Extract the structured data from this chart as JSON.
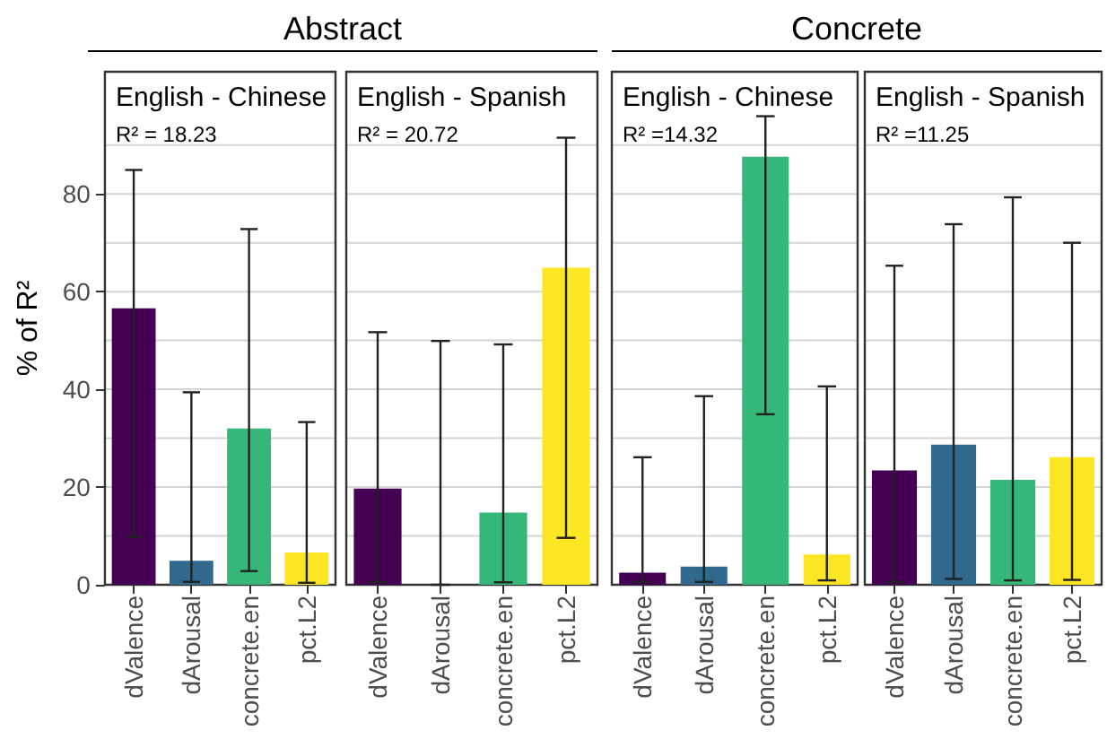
{
  "chart_data": [
    {
      "type": "bar",
      "subtitle": "Abstract",
      "title": "English - Chinese",
      "annotations": [
        "R² = 18.23"
      ],
      "ylabel": "% of R²",
      "categories": [
        "dValence",
        "dArousal",
        "concrete.en",
        "pct.L2"
      ],
      "values": [
        56.6,
        4.9,
        32.0,
        6.6
      ],
      "colors": [
        "#440154",
        "#31688e",
        "#35b779",
        "#fde725"
      ],
      "errors": [
        [
          9.8,
          84.9
        ],
        [
          0.6,
          39.4
        ],
        [
          2.8,
          72.8
        ],
        [
          0.4,
          33.3
        ]
      ],
      "ylim": [
        0,
        105
      ],
      "yticks": [
        0,
        {
          "value": 10,
          "label": null
        },
        20,
        {
          "value": 30,
          "label": null
        },
        40,
        {
          "value": 50,
          "label": null
        },
        60,
        {
          "value": 70,
          "label": null
        },
        80,
        {
          "value": 90,
          "label": null
        }
      ],
      "grid": "y"
    },
    {
      "type": "bar",
      "title": "English - Spanish",
      "annotations": [
        "R² = 20.72"
      ],
      "categories": [
        "dValence",
        "dArousal",
        "concrete.en",
        "pct.L2"
      ],
      "values": [
        19.7,
        0,
        14.8,
        64.9
      ],
      "colors": [
        "#440154",
        "#31688e",
        "#35b779",
        "#fde725"
      ],
      "errors": [
        [
          0.5,
          51.7
        ],
        [
          0,
          49.9
        ],
        [
          0.5,
          49.2
        ],
        [
          9.6,
          91.5
        ]
      ],
      "ylim": [
        0,
        105
      ],
      "yticks": [
        0,
        {
          "value": 10,
          "label": null
        },
        20,
        {
          "value": 30,
          "label": null
        },
        40,
        {
          "value": 50,
          "label": null
        },
        60,
        {
          "value": 70,
          "label": null
        },
        80,
        {
          "value": 90,
          "label": null
        }
      ],
      "grid": "y",
      "tick_labels": "x"
    },
    {
      "type": "bar",
      "subtitle": "Concrete",
      "title": "English - Chinese",
      "annotations": [
        "R² =14.32"
      ],
      "categories": [
        "dValence",
        "dArousal",
        "concrete.en",
        "pct.L2"
      ],
      "values": [
        2.5,
        3.7,
        87.6,
        6.2
      ],
      "colors": [
        "#440154",
        "#31688e",
        "#35b779",
        "#fde725"
      ],
      "errors": [
        [
          0.6,
          26.1
        ],
        [
          0.6,
          38.6
        ],
        [
          34.9,
          95.9
        ],
        [
          0.9,
          40.6
        ]
      ],
      "ylim": [
        0,
        105
      ],
      "yticks": [
        0,
        {
          "value": 10,
          "label": null
        },
        20,
        {
          "value": 30,
          "label": null
        },
        40,
        {
          "value": 50,
          "label": null
        },
        60,
        {
          "value": 70,
          "label": null
        },
        80,
        {
          "value": 90,
          "label": null
        }
      ],
      "grid": "y",
      "tick_labels": "x"
    },
    {
      "type": "bar",
      "title": "English - Spanish",
      "annotations": [
        "R² =11.25"
      ],
      "categories": [
        "dValence",
        "dArousal",
        "concrete.en",
        "pct.L2"
      ],
      "values": [
        23.4,
        28.7,
        21.5,
        26.1
      ],
      "colors": [
        "#440154",
        "#31688e",
        "#35b779",
        "#fde725"
      ],
      "errors": [
        [
          0.6,
          65.3
        ],
        [
          1.2,
          73.8
        ],
        [
          0.9,
          79.3
        ],
        [
          1.0,
          70.0
        ]
      ],
      "ylim": [
        0,
        105
      ],
      "yticks": [
        0,
        {
          "value": 10,
          "label": null
        },
        20,
        {
          "value": 30,
          "label": null
        },
        40,
        {
          "value": 50,
          "label": null
        },
        60,
        {
          "value": 70,
          "label": null
        },
        80,
        {
          "value": 90,
          "label": null
        }
      ],
      "grid": "y",
      "tick_labels": "x"
    }
  ]
}
